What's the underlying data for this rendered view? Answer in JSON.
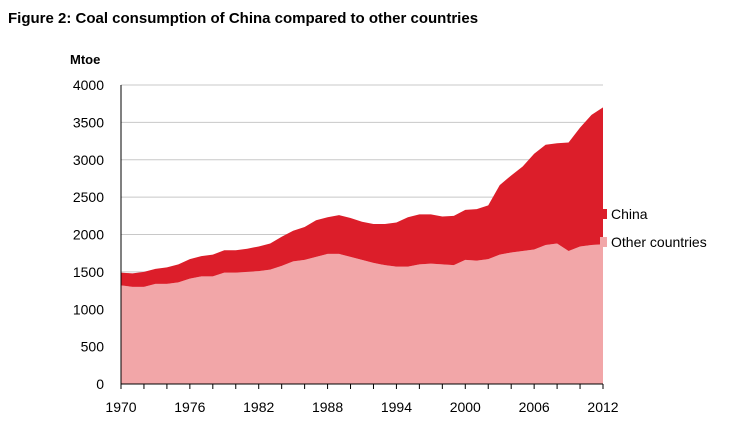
{
  "chart_data": {
    "type": "area",
    "stacked": true,
    "title": "Figure 2: Coal consumption of China compared to other countries",
    "ylabel": "Mtoe",
    "xlabel": "",
    "ylim": [
      0,
      4000
    ],
    "yticks": [
      0,
      500,
      1000,
      1500,
      2000,
      2500,
      3000,
      3500,
      4000
    ],
    "xticks": [
      1970,
      1976,
      1982,
      1988,
      1994,
      2000,
      2006,
      2012
    ],
    "xlim": [
      1970,
      2012
    ],
    "grid": "horizontal",
    "legend_position": "right",
    "x": [
      1970,
      1971,
      1972,
      1973,
      1974,
      1975,
      1976,
      1977,
      1978,
      1979,
      1980,
      1981,
      1982,
      1983,
      1984,
      1985,
      1986,
      1987,
      1988,
      1989,
      1990,
      1991,
      1992,
      1993,
      1994,
      1995,
      1996,
      1997,
      1998,
      1999,
      2000,
      2001,
      2002,
      2003,
      2004,
      2005,
      2006,
      2007,
      2008,
      2009,
      2010,
      2011,
      2012
    ],
    "series": [
      {
        "name": "Other countries",
        "color": "#f2a6a8",
        "values": [
          1320,
          1300,
          1300,
          1340,
          1340,
          1360,
          1410,
          1440,
          1440,
          1490,
          1490,
          1500,
          1510,
          1530,
          1580,
          1640,
          1660,
          1700,
          1740,
          1740,
          1700,
          1660,
          1620,
          1590,
          1570,
          1570,
          1600,
          1610,
          1600,
          1590,
          1660,
          1650,
          1670,
          1730,
          1760,
          1780,
          1800,
          1860,
          1880,
          1780,
          1840,
          1860,
          1870
        ]
      },
      {
        "name": "China",
        "color": "#dc1e2a",
        "values": [
          170,
          180,
          200,
          200,
          220,
          240,
          260,
          270,
          290,
          300,
          300,
          310,
          330,
          350,
          390,
          410,
          440,
          490,
          490,
          520,
          520,
          510,
          520,
          550,
          590,
          660,
          670,
          660,
          640,
          660,
          670,
          690,
          720,
          930,
          1030,
          1130,
          1280,
          1340,
          1340,
          1450,
          1590,
          1740,
          1830
        ]
      }
    ]
  }
}
